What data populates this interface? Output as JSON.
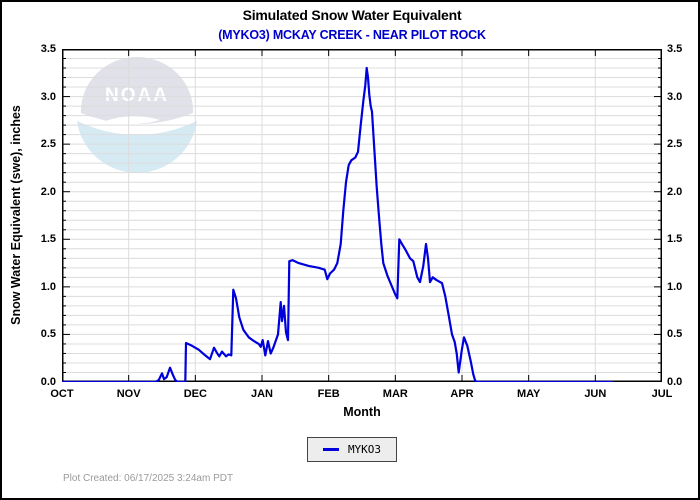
{
  "header": {
    "title": "Simulated Snow Water Equivalent",
    "subtitle": "(MYKO3) MCKAY CREEK - NEAR PILOT ROCK"
  },
  "watermark": {
    "name": "noaa-logo",
    "text": "NOAA"
  },
  "legend": {
    "position": "bottom-center",
    "items": [
      {
        "label": "MYKO3",
        "color": "#0000dd"
      }
    ]
  },
  "footer": {
    "plot_created": "Plot Created: 06/17/2025 3:24am PDT"
  },
  "colors": {
    "line": "#0000dd",
    "subtitle": "#0000cc",
    "grid": "#dcdcdc",
    "axis": "#000000",
    "footer_text": "#9a9a9a",
    "watermark_gray": "#e0e1e9",
    "watermark_blue": "#d6eaf4"
  },
  "chart_data": {
    "type": "line",
    "title": "Simulated Snow Water Equivalent",
    "subtitle": "(MYKO3) MCKAY CREEK - NEAR PILOT ROCK",
    "xlabel": "Month",
    "ylabel": "Snow Water Equivalent (swe),  inches",
    "x_tick_labels": [
      "OCT",
      "NOV",
      "DEC",
      "JAN",
      "FEB",
      "MAR",
      "APR",
      "MAY",
      "JUN",
      "JUL"
    ],
    "y_tick_labels": [
      "0.0",
      "0.5",
      "1.0",
      "1.5",
      "2.0",
      "2.5",
      "3.0",
      "3.5"
    ],
    "ylim": [
      0.0,
      3.5
    ],
    "y_major_step": 0.5,
    "y_minor_step": 0.1,
    "grid": "horizontal minor every 0.1, vertical at each month",
    "legend_position": "bottom-center",
    "series": [
      {
        "name": "MYKO3",
        "color": "#0000dd",
        "x_unit": "months since OCT tick (0=OCT, 1=NOV, ... 9=JUL)",
        "y_unit": "inches",
        "points": [
          [
            0,
            0
          ],
          [
            1.4,
            0
          ],
          [
            1.45,
            0.02
          ],
          [
            1.5,
            0.09
          ],
          [
            1.53,
            0.03
          ],
          [
            1.57,
            0.05
          ],
          [
            1.62,
            0.15
          ],
          [
            1.66,
            0.08
          ],
          [
            1.7,
            0.02
          ],
          [
            1.74,
            0
          ],
          [
            1.85,
            0
          ],
          [
            1.86,
            0.41
          ],
          [
            1.95,
            0.38
          ],
          [
            2.05,
            0.34
          ],
          [
            2.15,
            0.28
          ],
          [
            2.22,
            0.24
          ],
          [
            2.28,
            0.36
          ],
          [
            2.33,
            0.3
          ],
          [
            2.36,
            0.27
          ],
          [
            2.4,
            0.32
          ],
          [
            2.46,
            0.27
          ],
          [
            2.5,
            0.29
          ],
          [
            2.54,
            0.28
          ],
          [
            2.57,
            0.97
          ],
          [
            2.61,
            0.88
          ],
          [
            2.66,
            0.68
          ],
          [
            2.72,
            0.55
          ],
          [
            2.8,
            0.47
          ],
          [
            2.88,
            0.43
          ],
          [
            2.95,
            0.4
          ],
          [
            2.98,
            0.37
          ],
          [
            3.01,
            0.44
          ],
          [
            3.05,
            0.28
          ],
          [
            3.09,
            0.43
          ],
          [
            3.13,
            0.3
          ],
          [
            3.17,
            0.36
          ],
          [
            3.24,
            0.5
          ],
          [
            3.28,
            0.84
          ],
          [
            3.3,
            0.64
          ],
          [
            3.33,
            0.8
          ],
          [
            3.36,
            0.52
          ],
          [
            3.39,
            0.44
          ],
          [
            3.41,
            1.27
          ],
          [
            3.46,
            1.28
          ],
          [
            3.55,
            1.25
          ],
          [
            3.7,
            1.22
          ],
          [
            3.85,
            1.2
          ],
          [
            3.94,
            1.18
          ],
          [
            3.98,
            1.08
          ],
          [
            4.02,
            1.14
          ],
          [
            4.08,
            1.18
          ],
          [
            4.13,
            1.25
          ],
          [
            4.18,
            1.45
          ],
          [
            4.22,
            1.8
          ],
          [
            4.26,
            2.1
          ],
          [
            4.3,
            2.28
          ],
          [
            4.34,
            2.33
          ],
          [
            4.4,
            2.36
          ],
          [
            4.44,
            2.42
          ],
          [
            4.48,
            2.7
          ],
          [
            4.52,
            2.95
          ],
          [
            4.55,
            3.12
          ],
          [
            4.57,
            3.3
          ],
          [
            4.59,
            3.2
          ],
          [
            4.61,
            3.02
          ],
          [
            4.63,
            2.9
          ],
          [
            4.65,
            2.84
          ],
          [
            4.68,
            2.5
          ],
          [
            4.72,
            2.05
          ],
          [
            4.76,
            1.7
          ],
          [
            4.79,
            1.45
          ],
          [
            4.82,
            1.25
          ],
          [
            4.88,
            1.12
          ],
          [
            4.94,
            1.02
          ],
          [
            5.0,
            0.92
          ],
          [
            5.03,
            0.88
          ],
          [
            5.06,
            1.5
          ],
          [
            5.1,
            1.45
          ],
          [
            5.16,
            1.38
          ],
          [
            5.22,
            1.3
          ],
          [
            5.27,
            1.27
          ],
          [
            5.33,
            1.1
          ],
          [
            5.37,
            1.05
          ],
          [
            5.42,
            1.22
          ],
          [
            5.46,
            1.45
          ],
          [
            5.49,
            1.3
          ],
          [
            5.52,
            1.05
          ],
          [
            5.56,
            1.1
          ],
          [
            5.62,
            1.07
          ],
          [
            5.7,
            1.04
          ],
          [
            5.75,
            0.9
          ],
          [
            5.8,
            0.7
          ],
          [
            5.85,
            0.5
          ],
          [
            5.89,
            0.42
          ],
          [
            5.92,
            0.3
          ],
          [
            5.95,
            0.1
          ],
          [
            6.0,
            0.35
          ],
          [
            6.03,
            0.47
          ],
          [
            6.08,
            0.38
          ],
          [
            6.13,
            0.22
          ],
          [
            6.17,
            0.08
          ],
          [
            6.2,
            0.01
          ],
          [
            6.25,
            0
          ],
          [
            8.25,
            0
          ]
        ]
      }
    ]
  }
}
